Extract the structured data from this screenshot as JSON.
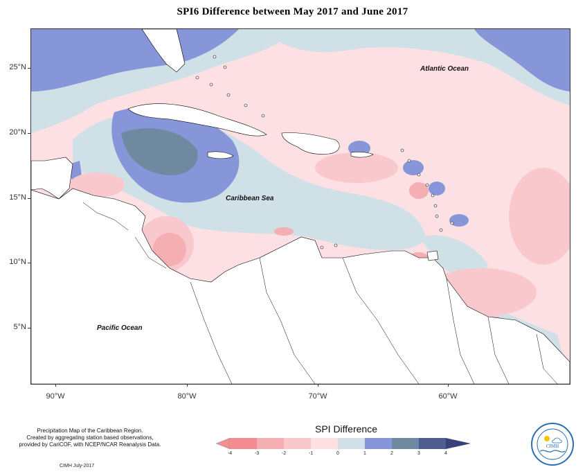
{
  "title": "SPI6 Difference between May 2017 and June 2017",
  "map": {
    "labels": {
      "atlantic": "Atlantic Ocean",
      "caribbean": "Caribbean Sea",
      "pacific": "Pacific Ocean"
    },
    "lat_labels": [
      "25°N",
      "20°N",
      "15°N",
      "10°N",
      "5°N"
    ],
    "lon_labels": [
      "90°W",
      "80°W",
      "70°W",
      "60°W"
    ],
    "colors": {
      "land": "#ffffff",
      "coast": "#000000",
      "neg4": "#f28e92",
      "neg3": "#f5aeb1",
      "neg2": "#f8c8cc",
      "neg1": "#fde0e4",
      "zero": "#f3e6ec",
      "pos1": "#cfe0e6",
      "pos2": "#8796d8",
      "pos3": "#6f8aa0",
      "pos4": "#4f5c8e"
    }
  },
  "legend": {
    "title": "SPI Difference",
    "ticks": [
      "-4",
      "-3",
      "-2",
      "-1",
      "0",
      "1",
      "2",
      "3",
      "4"
    ],
    "colors": [
      "#f28e92",
      "#f5aeb1",
      "#f8c8cc",
      "#fde0e4",
      "#cfe0e6",
      "#8796d8",
      "#6f8aa0",
      "#4f5c8e"
    ]
  },
  "note": {
    "line1": "Precipitation Map of the Caribbean Region.",
    "line2": "Created by aggregating station based observations,",
    "line3": "provided by CariCOF, with NCEP/NCAR Reanalysis Data."
  },
  "credit": "CIMH July-2017",
  "logo": {
    "text": "CIMH"
  }
}
